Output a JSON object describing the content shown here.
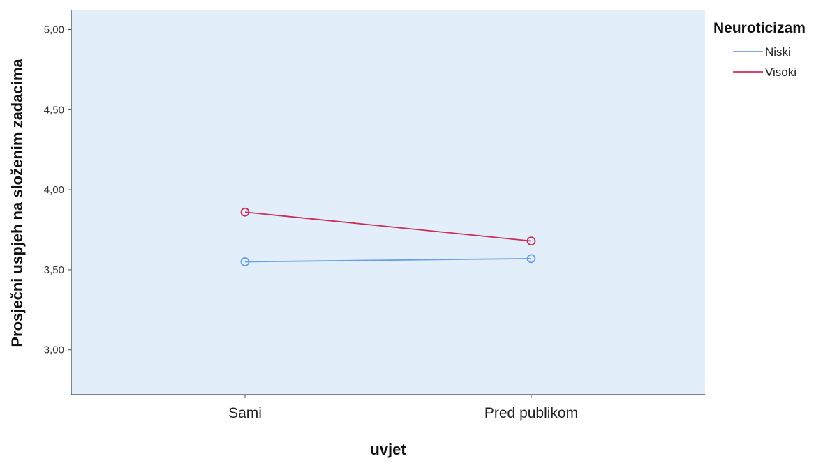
{
  "chart_data": {
    "type": "line",
    "xlabel": "uvjet",
    "ylabel": "Prosječni uspjeh na složenim zadacima",
    "categories": [
      "Sami",
      "Pred publikom"
    ],
    "ylim": [
      2.72,
      5.12
    ],
    "yticks": [
      3.0,
      3.5,
      4.0,
      4.5,
      5.0
    ],
    "ytick_labels": [
      "3,00",
      "3,50",
      "4,00",
      "4,50",
      "5,00"
    ],
    "series": [
      {
        "name": "Niski",
        "color": "#6a9fe6",
        "values": [
          3.55,
          3.57
        ]
      },
      {
        "name": "Visoki",
        "color": "#cc2c58",
        "values": [
          3.86,
          3.68
        ]
      }
    ],
    "legend": {
      "title": "Neuroticizam",
      "placement": "right"
    },
    "plot_background": "#e3eefb",
    "grid": false
  }
}
